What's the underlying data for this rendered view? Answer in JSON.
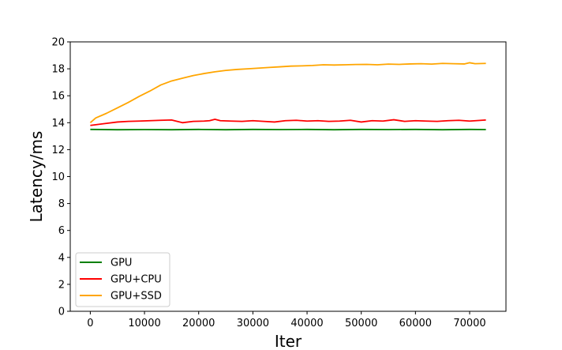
{
  "chart_data": {
    "type": "line",
    "title": "",
    "xlabel": "Iter",
    "ylabel": "Latency/ms",
    "xlim": [
      -3700,
      76700
    ],
    "ylim": [
      0,
      20
    ],
    "x_ticks": [
      0,
      10000,
      20000,
      30000,
      40000,
      50000,
      60000,
      70000
    ],
    "x_tick_labels": [
      "0",
      "10000",
      "20000",
      "30000",
      "40000",
      "50000",
      "60000",
      "70000"
    ],
    "y_ticks": [
      0,
      2,
      4,
      6,
      8,
      10,
      12,
      14,
      16,
      18,
      20
    ],
    "y_tick_labels": [
      "0",
      "2",
      "4",
      "6",
      "8",
      "10",
      "12",
      "14",
      "16",
      "18",
      "20"
    ],
    "grid": false,
    "legend": {
      "position": "lower-left",
      "entries": [
        "GPU",
        "GPU+CPU",
        "GPU+SSD"
      ]
    },
    "series": [
      {
        "name": "GPU",
        "color": "#008000",
        "x": [
          0,
          5000,
          10000,
          15000,
          20000,
          25000,
          30000,
          35000,
          40000,
          45000,
          50000,
          55000,
          60000,
          65000,
          70000,
          73000
        ],
        "y": [
          13.5,
          13.48,
          13.49,
          13.48,
          13.5,
          13.48,
          13.5,
          13.49,
          13.5,
          13.48,
          13.5,
          13.49,
          13.5,
          13.48,
          13.5,
          13.49
        ]
      },
      {
        "name": "GPU+CPU",
        "color": "#ff0000",
        "x": [
          0,
          1000,
          3000,
          5000,
          7000,
          9000,
          11000,
          13000,
          15000,
          17000,
          19000,
          21000,
          22000,
          23000,
          24000,
          26000,
          28000,
          30000,
          32000,
          34000,
          36000,
          38000,
          40000,
          42000,
          44000,
          46000,
          48000,
          50000,
          52000,
          54000,
          56000,
          58000,
          60000,
          62000,
          64000,
          66000,
          68000,
          70000,
          73000
        ],
        "y": [
          13.8,
          13.85,
          13.95,
          14.05,
          14.1,
          14.12,
          14.15,
          14.18,
          14.2,
          14.0,
          14.1,
          14.12,
          14.15,
          14.25,
          14.15,
          14.12,
          14.1,
          14.15,
          14.1,
          14.05,
          14.15,
          14.18,
          14.12,
          14.15,
          14.1,
          14.12,
          14.18,
          14.05,
          14.15,
          14.12,
          14.22,
          14.1,
          14.15,
          14.12,
          14.1,
          14.15,
          14.18,
          14.12,
          14.2
        ]
      },
      {
        "name": "GPU+SSD",
        "color": "#ffa500",
        "x": [
          0,
          1000,
          3000,
          5000,
          7000,
          9000,
          11000,
          13000,
          15000,
          17000,
          19000,
          21000,
          23000,
          25000,
          27000,
          29000,
          31000,
          33000,
          35000,
          37000,
          39000,
          41000,
          43000,
          45000,
          47000,
          49000,
          51000,
          53000,
          55000,
          57000,
          59000,
          61000,
          63000,
          65000,
          67000,
          69000,
          70000,
          71000,
          73000
        ],
        "y": [
          14.0,
          14.35,
          14.7,
          15.1,
          15.5,
          15.95,
          16.35,
          16.8,
          17.1,
          17.3,
          17.5,
          17.65,
          17.78,
          17.88,
          17.95,
          18.0,
          18.05,
          18.1,
          18.15,
          18.2,
          18.22,
          18.25,
          18.3,
          18.28,
          18.3,
          18.32,
          18.33,
          18.3,
          18.35,
          18.33,
          18.36,
          18.38,
          18.35,
          18.4,
          18.38,
          18.36,
          18.45,
          18.38,
          18.4
        ]
      }
    ]
  }
}
